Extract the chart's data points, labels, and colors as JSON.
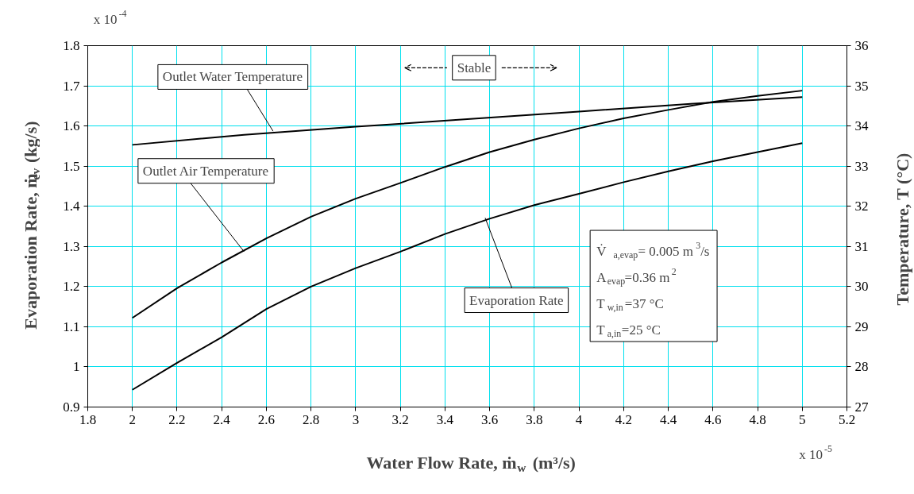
{
  "chart_data": {
    "type": "line",
    "x": [
      2.0,
      2.2,
      2.4,
      2.6,
      2.8,
      3.0,
      3.2,
      3.4,
      3.6,
      3.8,
      4.0,
      4.2,
      4.4,
      4.6,
      4.8,
      5.0
    ],
    "series": [
      {
        "color": "#000000",
        "values": [
          0.943,
          1.01,
          1.074,
          1.144,
          1.2,
          1.246,
          1.287,
          1.331,
          1.369,
          1.403,
          1.431,
          1.46,
          1.487,
          1.512,
          1.535,
          1.557
        ]
      },
      {
        "color": "#000000",
        "axis": "y2",
        "values": [
          29.22,
          29.96,
          30.6,
          31.2,
          31.74,
          32.19,
          32.58,
          32.98,
          33.35,
          33.66,
          33.94,
          34.19,
          34.4,
          34.6,
          34.75,
          34.88
        ]
      },
      {
        "color": "#000000",
        "axis": "y2",
        "x": [
          2.0,
          2.5,
          3.0,
          3.5,
          4.0,
          4.5,
          5.0
        ],
        "values": [
          33.53,
          33.78,
          33.98,
          34.17,
          34.36,
          34.55,
          34.72
        ]
      }
    ],
    "xlim": [
      1.8,
      5.2
    ],
    "xticks": [
      1.8,
      2,
      2.2,
      2.4,
      2.6,
      2.8,
      3,
      3.2,
      3.4,
      3.6,
      3.8,
      4,
      4.2,
      4.4,
      4.6,
      4.8,
      5,
      5.2
    ],
    "ylim": [
      0.9,
      1.8
    ],
    "yticks": [
      0.9,
      1,
      1.1,
      1.2,
      1.3,
      1.4,
      1.5,
      1.6,
      1.7,
      1.8
    ],
    "y2lim": [
      27,
      36
    ],
    "y2ticks": [
      27,
      28,
      29,
      30,
      31,
      32,
      33,
      34,
      35,
      36
    ],
    "xlabel": "Water Flow Rate, ṁ$_{w}$ (m³/s)",
    "ylabel": "Evaporation Rate, ṁ$_{ev}$ (kg/s)",
    "y2label": "Temperature, T (°C)",
    "grid": true,
    "annotations": [
      {
        "text": "Outlet Water Temperature",
        "x": 2.63,
        "y": 1.587
      },
      {
        "text": "Outlet Air Temperature",
        "x": 2.5,
        "y": 1.287
      },
      {
        "text": "Evaporation Rate",
        "x": 3.58,
        "y": 1.371
      },
      "Stable",
      "x 10$^{-4}$",
      "x 10$^{-5}$",
      "V̇$_{a,evap}$= 0.005 m$^{3}$/s",
      "A$_{evap}$=0.36 m$^{2}$",
      "T$_{w,in}$=37 °C",
      "T$_{a,in}$=25 °C"
    ]
  }
}
